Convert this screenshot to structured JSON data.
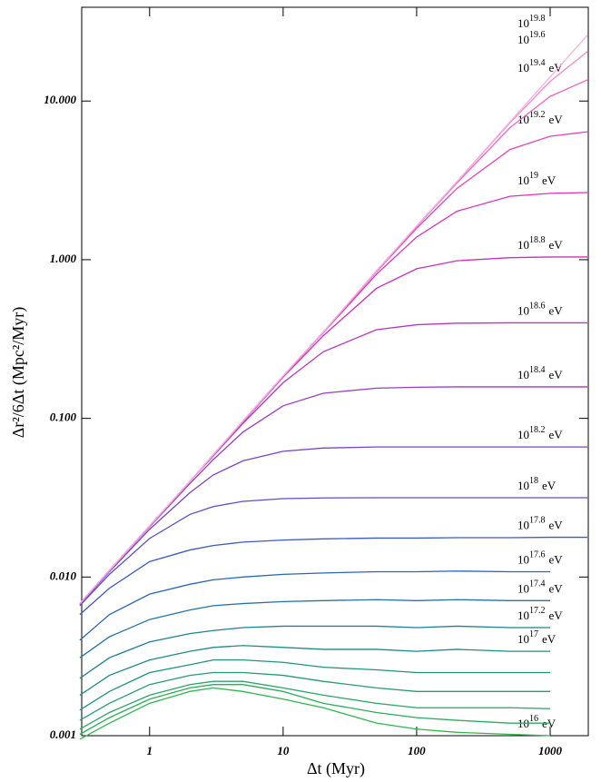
{
  "chart_data": {
    "type": "line",
    "x_label": "Δt (Myr)",
    "y_label": "Δr²/6Δt (Mpc²/Myr)",
    "x_scale": "log",
    "y_scale": "log",
    "xlim": [
      0.31,
      1930
    ],
    "ylim": [
      0.001,
      39
    ],
    "xticks": [
      1,
      10,
      100,
      1000
    ],
    "yticks": [
      {
        "value": 0.001,
        "label": "0.001"
      },
      {
        "value": 0.01,
        "label": "0.010"
      },
      {
        "value": 0.1,
        "label": "0.100"
      },
      {
        "value": 1,
        "label": "1.000"
      },
      {
        "value": 10,
        "label": "10.000"
      }
    ],
    "x": [
      0.3,
      0.5,
      1,
      2,
      3,
      5,
      10,
      20,
      50,
      100,
      200,
      500,
      1000,
      1900
    ],
    "series": [
      {
        "name": {
          "base": "10",
          "exponent": "16",
          "unit": "eV"
        },
        "color": "#2db84d",
        "values": [
          0.00095,
          0.0012,
          0.0016,
          0.0019,
          0.002,
          0.0019,
          0.0017,
          0.0015,
          0.0012,
          0.0011,
          0.00105,
          0.00102,
          0.001,
          null
        ]
      },
      {
        "color": "#2aad5a",
        "values": [
          0.00102,
          0.0013,
          0.0017,
          0.002,
          0.0021,
          0.0021,
          0.0019,
          0.0016,
          0.0014,
          0.0013,
          0.00125,
          0.0012,
          0.0012,
          null
        ]
      },
      {
        "color": "#27a566",
        "values": [
          0.0011,
          0.0014,
          0.0018,
          0.0021,
          0.0022,
          0.0022,
          0.002,
          0.0018,
          0.0016,
          0.0015,
          0.0015,
          0.0015,
          0.00148,
          null
        ]
      },
      {
        "color": "#249c72",
        "values": [
          0.00125,
          0.0016,
          0.0021,
          0.0024,
          0.0025,
          0.0025,
          0.0024,
          0.0022,
          0.002,
          0.0019,
          0.0019,
          0.0019,
          0.0019,
          null
        ]
      },
      {
        "color": "#21937d",
        "values": [
          0.00145,
          0.0019,
          0.0025,
          0.0028,
          0.003,
          0.003,
          0.0029,
          0.0027,
          0.0026,
          0.0025,
          0.0025,
          0.0025,
          0.0025,
          null
        ]
      },
      {
        "name": {
          "base": "10",
          "exponent": "17",
          "unit": "eV"
        },
        "color": "#1e8a89",
        "values": [
          0.0018,
          0.0024,
          0.003,
          0.0034,
          0.0036,
          0.0037,
          0.0036,
          0.0035,
          0.0035,
          0.0034,
          0.0035,
          0.0034,
          0.0034,
          null
        ]
      },
      {
        "name": {
          "base": "10",
          "exponent": "17.2",
          "unit": "eV"
        },
        "color": "#1f8096",
        "values": [
          0.0023,
          0.0031,
          0.0039,
          0.0044,
          0.0046,
          0.0048,
          0.0049,
          0.0049,
          0.0049,
          0.0048,
          0.0049,
          0.0048,
          0.0048,
          null
        ]
      },
      {
        "name": {
          "base": "10",
          "exponent": "17.4",
          "unit": "eV"
        },
        "color": "#2373a8",
        "values": [
          0.0031,
          0.0042,
          0.0054,
          0.0062,
          0.0066,
          0.0068,
          0.007,
          0.0071,
          0.0072,
          0.0071,
          0.0072,
          0.0071,
          0.0071,
          null
        ]
      },
      {
        "name": {
          "base": "10",
          "exponent": "17.6",
          "unit": "eV"
        },
        "color": "#2a65b8",
        "values": [
          0.004,
          0.0058,
          0.0078,
          0.009,
          0.0096,
          0.01,
          0.0104,
          0.0106,
          0.0108,
          0.0108,
          0.0109,
          0.0108,
          0.0108,
          null
        ]
      },
      {
        "name": {
          "base": "10",
          "exponent": "17.8",
          "unit": "eV"
        },
        "color": "#3a5ac4",
        "values": [
          0.0058,
          0.0085,
          0.0125,
          0.0148,
          0.0158,
          0.0166,
          0.0171,
          0.0174,
          0.0176,
          0.0176,
          0.0177,
          0.0177,
          0.0178,
          0.0178
        ]
      },
      {
        "name": {
          "base": "10",
          "exponent": "18",
          "unit": "eV"
        },
        "color": "#5a4fcc",
        "values": [
          0.0066,
          0.0104,
          0.0175,
          0.0248,
          0.0278,
          0.03,
          0.0312,
          0.0315,
          0.0316,
          0.0316,
          0.0316,
          0.0316,
          0.0316,
          0.0316
        ]
      },
      {
        "name": {
          "base": "10",
          "exponent": "18.2",
          "unit": "eV"
        },
        "color": "#7a44c8",
        "values": [
          0.0067,
          0.0108,
          0.02,
          0.034,
          0.044,
          0.054,
          0.062,
          0.065,
          0.066,
          0.066,
          0.066,
          0.066,
          0.066,
          0.066
        ]
      },
      {
        "name": {
          "base": "10",
          "exponent": "18.4",
          "unit": "eV"
        },
        "color": "#9a3cc4",
        "values": [
          0.0068,
          0.011,
          0.0207,
          0.0388,
          0.055,
          0.082,
          0.12,
          0.144,
          0.155,
          0.157,
          0.158,
          0.158,
          0.158,
          0.158
        ]
      },
      {
        "name": {
          "base": "10",
          "exponent": "18.6",
          "unit": "eV"
        },
        "color": "#b636c0",
        "values": [
          0.0068,
          0.011,
          0.021,
          0.04,
          0.058,
          0.093,
          0.168,
          0.263,
          0.362,
          0.389,
          0.398,
          0.4,
          0.4,
          0.4
        ]
      },
      {
        "name": {
          "base": "10",
          "exponent": "18.8",
          "unit": "eV"
        },
        "color": "#cc30bc",
        "values": [
          0.0068,
          0.011,
          0.021,
          0.04,
          0.059,
          0.095,
          0.182,
          0.332,
          0.66,
          0.877,
          0.985,
          1.03,
          1.04,
          1.04
        ]
      },
      {
        "name": {
          "base": "10",
          "exponent": "19",
          "unit": "eV"
        },
        "color": "#de32b8",
        "values": [
          0.0068,
          0.011,
          0.021,
          0.04,
          0.059,
          0.096,
          0.184,
          0.347,
          0.81,
          1.39,
          2.02,
          2.51,
          2.62,
          2.65
        ]
      },
      {
        "name": {
          "base": "10",
          "exponent": "19.2",
          "unit": "eV"
        },
        "color": "#e646b8",
        "values": [
          0.0068,
          0.011,
          0.021,
          0.04,
          0.059,
          0.096,
          0.185,
          0.35,
          0.84,
          1.58,
          2.81,
          4.95,
          6.0,
          6.4
        ]
      },
      {
        "name": {
          "base": "10",
          "exponent": "19.4",
          "unit": "eV"
        },
        "color": "#ec66c4",
        "values": [
          0.0068,
          0.011,
          0.021,
          0.04,
          0.059,
          0.096,
          0.185,
          0.35,
          0.85,
          1.62,
          3.04,
          6.8,
          10.7,
          13.6
        ]
      },
      {
        "name": {
          "base": "10",
          "exponent": "19.6"
        },
        "color": "#f08ad2",
        "values": [
          0.0068,
          0.011,
          0.021,
          0.04,
          0.059,
          0.096,
          0.185,
          0.35,
          0.85,
          1.63,
          3.09,
          7.3,
          13.3,
          20.5
        ]
      },
      {
        "name": {
          "base": "10",
          "exponent": "19.8"
        },
        "color": "#f4b0e0",
        "values": [
          0.0068,
          0.011,
          0.021,
          0.04,
          0.059,
          0.096,
          0.185,
          0.35,
          0.85,
          1.63,
          3.1,
          7.4,
          14.2,
          26
        ]
      }
    ]
  }
}
